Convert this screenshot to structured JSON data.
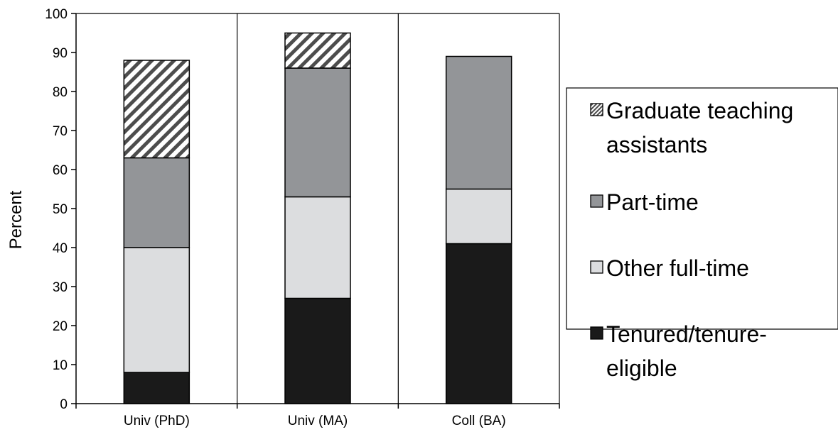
{
  "chart_data": {
    "type": "bar",
    "stacked": true,
    "categories": [
      "Univ (PhD)",
      "Univ (MA)",
      "Coll (BA)"
    ],
    "series": [
      {
        "name": "Tenured/tenure-eligible",
        "legend_lines": [
          "Tenured/tenure-",
          "eligible"
        ],
        "values": [
          8,
          27,
          41
        ],
        "color": "#1a1a1a",
        "pattern": "solid"
      },
      {
        "name": "Other full-time",
        "legend_lines": [
          "Other full-time"
        ],
        "values": [
          32,
          26,
          14
        ],
        "color": "#dcdddf",
        "pattern": "solid"
      },
      {
        "name": "Part-time",
        "legend_lines": [
          "Part-time"
        ],
        "values": [
          23,
          33,
          34
        ],
        "color": "#939598",
        "pattern": "solid"
      },
      {
        "name": "Graduate teaching assistants",
        "legend_lines": [
          "Graduate teaching",
          "assistants"
        ],
        "values": [
          25,
          9,
          0
        ],
        "color": "#4d4d4d",
        "pattern": "diagonal-hatch"
      }
    ],
    "title": "",
    "xlabel": "",
    "ylabel": "Percent",
    "ylim": [
      0,
      100
    ],
    "yticks": [
      "0",
      "10",
      "20",
      "30",
      "40",
      "50",
      "60",
      "70",
      "80",
      "90",
      "100"
    ],
    "legend_position": "right",
    "legend_order": [
      "Graduate teaching assistants",
      "Part-time",
      "Other full-time",
      "Tenured/tenure-eligible"
    ],
    "grid": false,
    "category_separators": true
  }
}
